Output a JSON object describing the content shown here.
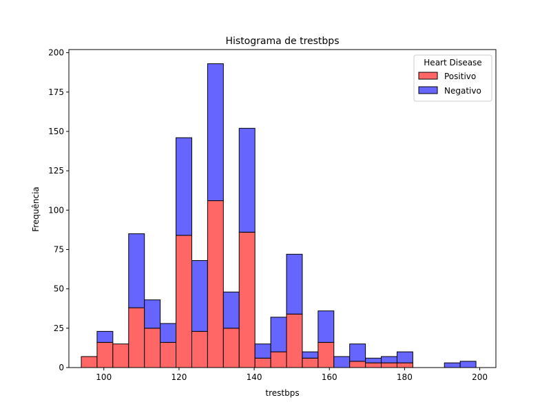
{
  "chart_data": {
    "type": "bar",
    "stacked": true,
    "title": "Histograma de trestbps",
    "xlabel": "trestbps",
    "ylabel": "Frequência",
    "xlim": [
      90.7,
      204.3
    ],
    "ylim": [
      0,
      202
    ],
    "xticks": [
      100,
      120,
      140,
      160,
      180,
      200
    ],
    "yticks": [
      0,
      25,
      50,
      75,
      100,
      125,
      150,
      175,
      200
    ],
    "grid": false,
    "legend": {
      "title": "Heart Disease",
      "position": "top-right"
    },
    "bin_edges": [
      94,
      98.2,
      102.4,
      106.6,
      110.8,
      115,
      119.2,
      123.4,
      127.6,
      131.8,
      136,
      140.2,
      144.4,
      148.6,
      152.8,
      157,
      161.2,
      165.4,
      169.6,
      173.8,
      178,
      182.2,
      186.4,
      190.6,
      194.8,
      199,
      200
    ],
    "series": [
      {
        "name": "Positivo",
        "color": "#ff6666",
        "values": [
          7,
          16,
          15,
          38,
          25,
          16,
          84,
          23,
          106,
          25,
          86,
          6,
          10,
          34,
          6,
          16,
          0,
          4,
          3,
          3,
          3,
          0,
          0,
          0,
          0,
          0
        ]
      },
      {
        "name": "Negativo",
        "color": "#6666ff",
        "values": [
          0,
          7,
          0,
          47,
          18,
          12,
          62,
          45,
          87,
          23,
          66,
          9,
          22,
          38,
          4,
          20,
          7,
          11,
          3,
          4,
          7,
          0,
          0,
          3,
          4,
          0
        ]
      }
    ]
  }
}
